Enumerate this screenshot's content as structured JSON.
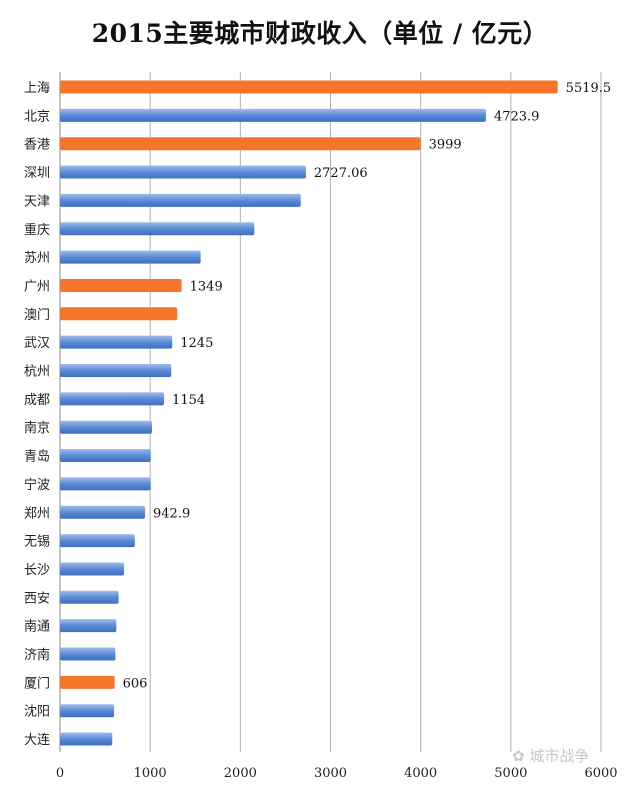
{
  "chart_data": {
    "type": "bar",
    "orientation": "horizontal",
    "title": "2015主要城市财政收入（单位 / 亿元）",
    "xlim": [
      0,
      6000
    ],
    "xticks": [
      "0",
      "1000",
      "2000",
      "3000",
      "4000",
      "5000",
      "6000"
    ],
    "grid": true,
    "categories": [
      "上海",
      "北京",
      "香港",
      "深圳",
      "天津",
      "重庆",
      "苏州",
      "广州",
      "澳门",
      "武汉",
      "杭州",
      "成都",
      "南京",
      "青岛",
      "宁波",
      "郑州",
      "无锡",
      "长沙",
      "西安",
      "南通",
      "济南",
      "厦门",
      "沈阳",
      "大连"
    ],
    "values": [
      5519.5,
      4723.9,
      3999,
      2727.06,
      2670,
      2155,
      1560,
      1349,
      1300,
      1245,
      1234,
      1154,
      1020,
      1006,
      1006,
      942.9,
      830,
      710,
      650,
      625,
      615,
      606,
      600,
      580
    ],
    "data_labels": [
      "5519.5",
      "4723.9",
      "3999",
      "2727.06",
      "",
      "",
      "",
      "1349",
      "",
      "1245",
      "",
      "1154",
      "",
      "",
      "",
      "942.9",
      "",
      "",
      "",
      "",
      "",
      "606",
      "",
      ""
    ],
    "highlight": [
      true,
      false,
      true,
      false,
      false,
      false,
      false,
      true,
      true,
      false,
      false,
      false,
      false,
      false,
      false,
      false,
      false,
      false,
      false,
      false,
      false,
      true,
      false,
      false
    ],
    "colors": {
      "highlight": "#f5762a",
      "normal": "#5b8bd6",
      "normal_dark": "#3f6fbf",
      "normal_light": "#9dbdec",
      "grid": "#b0b0b0"
    }
  },
  "watermark": {
    "icon": "wechat-icon",
    "text": "城市战争"
  }
}
